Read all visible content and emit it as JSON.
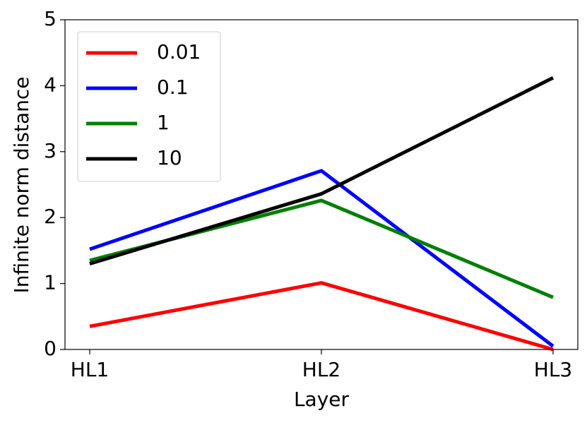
{
  "chart_data": {
    "type": "line",
    "x_label": "Layer",
    "y_label": "Infinite norm distance",
    "categories": [
      "HL1",
      "HL2",
      "HL3"
    ],
    "series": [
      {
        "name": "0.01",
        "color": "#ff0000",
        "values": [
          0.35,
          1.01,
          0.0
        ]
      },
      {
        "name": "0.1",
        "color": "#0000ff",
        "values": [
          1.52,
          2.71,
          0.05
        ]
      },
      {
        "name": "1",
        "color": "#008000",
        "values": [
          1.35,
          2.26,
          0.79
        ]
      },
      {
        "name": "10",
        "color": "#000000",
        "values": [
          1.3,
          2.36,
          4.12
        ]
      }
    ],
    "ylim": [
      0,
      5
    ],
    "yticks": [
      0,
      1,
      2,
      3,
      4,
      5
    ],
    "grid": false,
    "legend": "upper left"
  }
}
